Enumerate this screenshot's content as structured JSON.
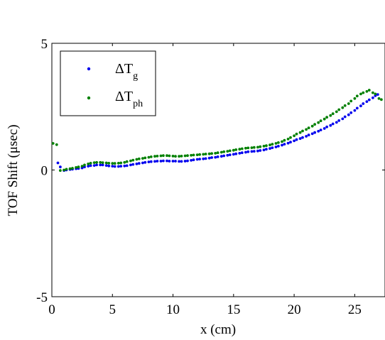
{
  "chart_data": {
    "type": "scatter",
    "xlabel": "x (cm)",
    "ylabel": "TOF Shift (μsec)",
    "xlim": [
      0,
      27.5
    ],
    "ylim": [
      -5,
      5
    ],
    "xticks": [
      "0",
      "5",
      "10",
      "15",
      "20",
      "25"
    ],
    "yticks": [
      "-5",
      "0",
      "5"
    ],
    "grid": false,
    "legend_position": "top-left",
    "series": [
      {
        "name_main": "ΔT",
        "name_sub": "g",
        "color": "#0000ee",
        "x": [
          0.5,
          0.7,
          1.0,
          1.2,
          1.5,
          1.7,
          2.0,
          2.2,
          2.5,
          2.7,
          3.0,
          3.2,
          3.5,
          3.7,
          4.0,
          4.2,
          4.5,
          4.7,
          5.0,
          5.2,
          5.5,
          5.7,
          6.0,
          6.2,
          6.5,
          6.7,
          7.0,
          7.2,
          7.5,
          7.7,
          8.0,
          8.2,
          8.5,
          8.7,
          9.0,
          9.2,
          9.5,
          9.7,
          10.0,
          10.2,
          10.5,
          10.7,
          11.0,
          11.2,
          11.5,
          11.7,
          12.0,
          12.2,
          12.5,
          12.7,
          13.0,
          13.2,
          13.5,
          13.7,
          14.0,
          14.2,
          14.5,
          14.7,
          15.0,
          15.2,
          15.5,
          15.7,
          16.0,
          16.2,
          16.5,
          16.7,
          17.0,
          17.2,
          17.5,
          17.7,
          18.0,
          18.2,
          18.5,
          18.7,
          19.0,
          19.2,
          19.5,
          19.7,
          20.0,
          20.2,
          20.5,
          20.7,
          21.0,
          21.2,
          21.5,
          21.7,
          22.0,
          22.2,
          22.5,
          22.7,
          23.0,
          23.2,
          23.5,
          23.7,
          24.0,
          24.2,
          24.5,
          24.7,
          25.0,
          25.2,
          25.5,
          25.7,
          26.0,
          26.2,
          26.5,
          26.7,
          26.9
        ],
        "y": [
          0.28,
          0.12,
          -0.02,
          0.0,
          0.02,
          0.03,
          0.05,
          0.06,
          0.08,
          0.12,
          0.15,
          0.17,
          0.18,
          0.2,
          0.2,
          0.2,
          0.18,
          0.16,
          0.15,
          0.14,
          0.14,
          0.15,
          0.16,
          0.17,
          0.2,
          0.22,
          0.24,
          0.26,
          0.28,
          0.3,
          0.32,
          0.33,
          0.34,
          0.35,
          0.35,
          0.36,
          0.36,
          0.35,
          0.35,
          0.35,
          0.34,
          0.34,
          0.35,
          0.36,
          0.38,
          0.4,
          0.42,
          0.43,
          0.44,
          0.45,
          0.47,
          0.49,
          0.5,
          0.52,
          0.54,
          0.56,
          0.58,
          0.6,
          0.62,
          0.64,
          0.66,
          0.68,
          0.7,
          0.72,
          0.73,
          0.74,
          0.75,
          0.77,
          0.79,
          0.82,
          0.85,
          0.88,
          0.91,
          0.94,
          0.98,
          1.02,
          1.06,
          1.1,
          1.15,
          1.2,
          1.24,
          1.28,
          1.33,
          1.38,
          1.43,
          1.48,
          1.53,
          1.58,
          1.64,
          1.7,
          1.76,
          1.82,
          1.88,
          1.95,
          2.02,
          2.1,
          2.18,
          2.26,
          2.35,
          2.44,
          2.53,
          2.62,
          2.7,
          2.77,
          2.85,
          2.93,
          2.98
        ]
      },
      {
        "name_main": "ΔT",
        "name_sub": "ph",
        "color": "#008000",
        "x": [
          0.1,
          0.4,
          0.7,
          1.0,
          1.2,
          1.5,
          1.7,
          2.0,
          2.2,
          2.5,
          2.7,
          3.0,
          3.2,
          3.5,
          3.7,
          4.0,
          4.2,
          4.5,
          4.7,
          5.0,
          5.2,
          5.5,
          5.7,
          6.0,
          6.2,
          6.5,
          6.7,
          7.0,
          7.2,
          7.5,
          7.7,
          8.0,
          8.2,
          8.5,
          8.7,
          9.0,
          9.2,
          9.5,
          9.7,
          10.0,
          10.2,
          10.5,
          10.7,
          11.0,
          11.2,
          11.5,
          11.7,
          12.0,
          12.2,
          12.5,
          12.7,
          13.0,
          13.2,
          13.5,
          13.7,
          14.0,
          14.2,
          14.5,
          14.7,
          15.0,
          15.2,
          15.5,
          15.7,
          16.0,
          16.2,
          16.5,
          16.7,
          17.0,
          17.2,
          17.5,
          17.7,
          18.0,
          18.2,
          18.5,
          18.7,
          19.0,
          19.2,
          19.5,
          19.7,
          20.0,
          20.2,
          20.5,
          20.7,
          21.0,
          21.2,
          21.5,
          21.7,
          22.0,
          22.2,
          22.5,
          22.7,
          23.0,
          23.2,
          23.5,
          23.7,
          24.0,
          24.2,
          24.5,
          24.7,
          25.0,
          25.2,
          25.5,
          25.7,
          26.0,
          26.2,
          26.5,
          26.7,
          27.0,
          27.2
        ],
        "y": [
          1.05,
          1.0,
          -0.02,
          0.0,
          0.03,
          0.05,
          0.07,
          0.1,
          0.12,
          0.15,
          0.2,
          0.24,
          0.27,
          0.29,
          0.3,
          0.3,
          0.29,
          0.28,
          0.27,
          0.26,
          0.26,
          0.27,
          0.28,
          0.3,
          0.33,
          0.36,
          0.39,
          0.42,
          0.44,
          0.46,
          0.48,
          0.5,
          0.52,
          0.54,
          0.55,
          0.56,
          0.57,
          0.57,
          0.56,
          0.55,
          0.54,
          0.54,
          0.55,
          0.56,
          0.57,
          0.58,
          0.59,
          0.6,
          0.61,
          0.62,
          0.63,
          0.64,
          0.65,
          0.66,
          0.68,
          0.7,
          0.72,
          0.74,
          0.76,
          0.78,
          0.8,
          0.82,
          0.84,
          0.86,
          0.87,
          0.88,
          0.89,
          0.9,
          0.92,
          0.94,
          0.96,
          0.99,
          1.02,
          1.05,
          1.08,
          1.12,
          1.17,
          1.22,
          1.28,
          1.35,
          1.42,
          1.48,
          1.54,
          1.6,
          1.66,
          1.73,
          1.8,
          1.87,
          1.94,
          2.01,
          2.08,
          2.15,
          2.22,
          2.3,
          2.38,
          2.46,
          2.54,
          2.62,
          2.72,
          2.82,
          2.92,
          3.0,
          3.05,
          3.1,
          3.15,
          3.05,
          3.0,
          2.82,
          2.78
        ]
      }
    ]
  }
}
